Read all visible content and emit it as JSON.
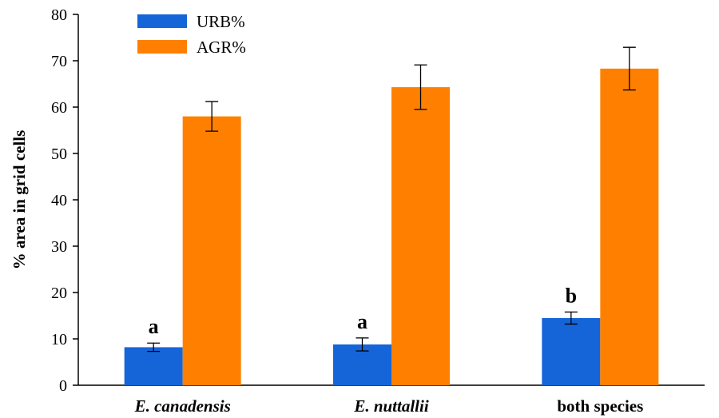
{
  "chart_data": {
    "type": "bar",
    "title": "",
    "xlabel": "",
    "ylabel": "% area in grid cells",
    "ylim": [
      0,
      80
    ],
    "yticks": [
      0,
      10,
      20,
      30,
      40,
      50,
      60,
      70,
      80
    ],
    "grid": false,
    "legend_position": "top-left",
    "categories": [
      "E. canadensis",
      "E. nuttallii",
      "both species"
    ],
    "category_italic": [
      true,
      true,
      false
    ],
    "series": [
      {
        "name": "URB%",
        "color": "#1565d8",
        "values": [
          8.2,
          8.8,
          14.5
        ],
        "error": [
          0.9,
          1.4,
          1.3
        ],
        "annotations": [
          "a",
          "a",
          "b"
        ]
      },
      {
        "name": "AGR%",
        "color": "#ff8000",
        "values": [
          58.0,
          64.3,
          68.3
        ],
        "error": [
          3.2,
          4.8,
          4.6
        ],
        "annotations": [
          "",
          "",
          ""
        ]
      }
    ]
  }
}
